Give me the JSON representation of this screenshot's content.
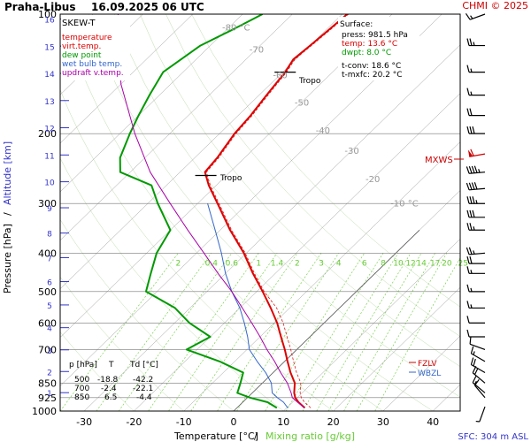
{
  "header": {
    "station": "Praha-Libus",
    "datetime": "16.09.2025 06 UTC",
    "credit": "CHMI © 2025"
  },
  "legend": {
    "chart_type_label": "SKEW-T",
    "items": [
      {
        "label": "temperature",
        "color": "#dd0000"
      },
      {
        "label": "virt.temp.",
        "color": "#dd0000"
      },
      {
        "label": "dew point",
        "color": "#009900"
      },
      {
        "label": "wet bulb temp.",
        "color": "#3366cc"
      },
      {
        "label": "updraft v.temp.",
        "color": "#aa00aa"
      }
    ]
  },
  "surface_box": {
    "title": "Surface:",
    "press": "press: 981.5 hPa",
    "temp": "temp: 13.6 °C",
    "dwpt": "dwpt: 8.0 °C",
    "tconv": "t-conv: 18.6 °C",
    "tmxfc": "t-mxfc: 20.2 °C"
  },
  "level_table": {
    "headers": [
      "p [hPa]",
      "T",
      "Td [°C]"
    ],
    "rows": [
      [
        "500",
        "-18.8",
        "-42.2"
      ],
      [
        "700",
        "-2.4",
        "-22.1"
      ],
      [
        "850",
        "6.5",
        "-4.4"
      ]
    ]
  },
  "axis_labels": {
    "x_temperature": "Temperature [°C]",
    "x_slash": "/",
    "x_mixing": "Mixing ratio [g/kg]",
    "y_pressure": "Pressure [hPa]",
    "y_slash": "/",
    "y_altitude": "Altitude [km]",
    "sfc": "SFC: 304 m ASL"
  },
  "annotations": {
    "tropo_upper": "Tropo",
    "tropo_lower": "Tropo",
    "mxws": "MXWS",
    "fzlv": "FZLV",
    "wbzl": "WBZL"
  },
  "colors": {
    "temperature": "#dd0000",
    "dewpoint": "#009900",
    "wetbulb": "#3366cc",
    "parcel": "#aa00aa",
    "mixing": "#66cc33",
    "isotherm": "#999999",
    "isobar": "#777777",
    "altitude": "#3333cc",
    "accent": "#cc0000"
  },
  "chart_data": {
    "type": "line",
    "title": "Praha-Libus 16.09.2025 06 UTC",
    "xlabel": "Temperature [°C] / Mixing ratio [g/kg]",
    "ylabel": "Pressure [hPa] / Altitude [km]",
    "xlim": [
      -35,
      45
    ],
    "ylim": [
      1000,
      100
    ],
    "y_scale": "log",
    "x_ticks": [
      -30,
      -20,
      -10,
      0,
      10,
      20,
      30,
      40
    ],
    "pressure_ticks": [
      100,
      200,
      300,
      400,
      500,
      600,
      700,
      850,
      925,
      1000
    ],
    "altitude_ticks_km": [
      1,
      2,
      3,
      4,
      5,
      6,
      7,
      8,
      9,
      10,
      11,
      12,
      13,
      14,
      15,
      16
    ],
    "isotherm_labels": [
      {
        "label": "-80 °C",
        "value": -80
      },
      {
        "label": "-70",
        "value": -70
      },
      {
        "label": "-60",
        "value": -60
      },
      {
        "label": "-50",
        "value": -50
      },
      {
        "label": "-40",
        "value": -40
      },
      {
        "label": "-30",
        "value": -30
      },
      {
        "label": "-20",
        "value": -20
      },
      {
        "label": "-10 °C",
        "value": -10
      }
    ],
    "mixing_ratio_labels": [
      "2",
      "0.4",
      "0.6",
      "1",
      "1.4",
      "2",
      "3",
      "4",
      "6",
      "8",
      "10",
      "12",
      "14",
      "17",
      "20",
      "25"
    ],
    "series": [
      {
        "name": "temperature",
        "points": [
          [
            981.5,
            13.6
          ],
          [
            950,
            11.2
          ],
          [
            925,
            9.6
          ],
          [
            900,
            8.4
          ],
          [
            850,
            6.5
          ],
          [
            800,
            3.5
          ],
          [
            750,
            0.6
          ],
          [
            700,
            -2.4
          ],
          [
            650,
            -5.8
          ],
          [
            600,
            -9.4
          ],
          [
            550,
            -13.8
          ],
          [
            500,
            -18.8
          ],
          [
            450,
            -24.5
          ],
          [
            400,
            -30.5
          ],
          [
            350,
            -38.0
          ],
          [
            300,
            -46.0
          ],
          [
            270,
            -51.5
          ],
          [
            250,
            -55.0
          ],
          [
            230,
            -55.5
          ],
          [
            200,
            -57.0
          ],
          [
            180,
            -57.5
          ],
          [
            160,
            -58.5
          ],
          [
            150,
            -59.0
          ],
          [
            140,
            -59.5
          ],
          [
            130,
            -60.5
          ],
          [
            120,
            -60.0
          ],
          [
            110,
            -59.5
          ],
          [
            100,
            -59.0
          ]
        ]
      },
      {
        "name": "dew point",
        "points": [
          [
            981.5,
            8.0
          ],
          [
            950,
            5.0
          ],
          [
            925,
            0.5
          ],
          [
            900,
            -3.0
          ],
          [
            850,
            -4.4
          ],
          [
            800,
            -6.0
          ],
          [
            750,
            -13.0
          ],
          [
            700,
            -22.1
          ],
          [
            650,
            -20.0
          ],
          [
            600,
            -27.0
          ],
          [
            550,
            -33.0
          ],
          [
            500,
            -42.2
          ],
          [
            450,
            -45.0
          ],
          [
            400,
            -48.0
          ],
          [
            350,
            -50.0
          ],
          [
            300,
            -58.0
          ],
          [
            270,
            -63.0
          ],
          [
            250,
            -72.0
          ],
          [
            230,
            -75.0
          ],
          [
            200,
            -78.0
          ],
          [
            180,
            -80.0
          ],
          [
            160,
            -82.0
          ],
          [
            140,
            -84.0
          ],
          [
            120,
            -82.0
          ],
          [
            110,
            -79.0
          ],
          [
            100,
            -76.0
          ]
        ]
      },
      {
        "name": "wet bulb temp.",
        "points": [
          [
            981.5,
            10.2
          ],
          [
            950,
            8.2
          ],
          [
            925,
            6.0
          ],
          [
            900,
            4.0
          ],
          [
            850,
            1.8
          ],
          [
            800,
            -1.5
          ],
          [
            750,
            -5.5
          ],
          [
            700,
            -9.5
          ],
          [
            650,
            -12.5
          ],
          [
            600,
            -16.0
          ],
          [
            550,
            -20.0
          ],
          [
            500,
            -25.0
          ],
          [
            450,
            -30.0
          ],
          [
            400,
            -35.0
          ],
          [
            350,
            -41.0
          ],
          [
            300,
            -48.0
          ]
        ]
      },
      {
        "name": "updraft v.temp.",
        "points": [
          [
            981.5,
            13.6
          ],
          [
            950,
            11.0
          ],
          [
            925,
            9.0
          ],
          [
            900,
            7.8
          ],
          [
            850,
            5.0
          ],
          [
            800,
            1.5
          ],
          [
            750,
            -2.0
          ],
          [
            700,
            -6.0
          ],
          [
            650,
            -10.0
          ],
          [
            600,
            -14.5
          ],
          [
            550,
            -19.5
          ],
          [
            500,
            -25.0
          ],
          [
            450,
            -31.5
          ],
          [
            400,
            -38.5
          ],
          [
            350,
            -46.5
          ],
          [
            300,
            -55.5
          ],
          [
            250,
            -66.0
          ],
          [
            200,
            -77.0
          ],
          [
            150,
            -90.0
          ],
          [
            100,
            -105.0
          ]
        ]
      }
    ],
    "tropopause_pressures_hpa": [
      140,
      255
    ],
    "max_wind_pressure_hpa": 225,
    "freezing_level_hpa": 740,
    "wet_bulb_zero_hpa": 780,
    "wind_barbs": [
      {
        "p": 100,
        "dir": 250,
        "spd": 15
      },
      {
        "p": 120,
        "dir": 270,
        "spd": 25
      },
      {
        "p": 140,
        "dir": 270,
        "spd": 15
      },
      {
        "p": 160,
        "dir": 270,
        "spd": 15
      },
      {
        "p": 180,
        "dir": 270,
        "spd": 20
      },
      {
        "p": 200,
        "dir": 270,
        "spd": 30
      },
      {
        "p": 225,
        "dir": 260,
        "spd": 60
      },
      {
        "p": 250,
        "dir": 265,
        "spd": 45
      },
      {
        "p": 275,
        "dir": 265,
        "spd": 40
      },
      {
        "p": 300,
        "dir": 270,
        "spd": 35
      },
      {
        "p": 325,
        "dir": 270,
        "spd": 30
      },
      {
        "p": 350,
        "dir": 270,
        "spd": 25
      },
      {
        "p": 400,
        "dir": 265,
        "spd": 25
      },
      {
        "p": 425,
        "dir": 270,
        "spd": 20
      },
      {
        "p": 450,
        "dir": 270,
        "spd": 15
      },
      {
        "p": 500,
        "dir": 270,
        "spd": 15
      },
      {
        "p": 550,
        "dir": 270,
        "spd": 15
      },
      {
        "p": 600,
        "dir": 270,
        "spd": 10
      },
      {
        "p": 650,
        "dir": 270,
        "spd": 10
      },
      {
        "p": 700,
        "dir": 290,
        "spd": 10
      },
      {
        "p": 750,
        "dir": 300,
        "spd": 15
      },
      {
        "p": 800,
        "dir": 300,
        "spd": 20
      },
      {
        "p": 850,
        "dir": 310,
        "spd": 20
      },
      {
        "p": 900,
        "dir": 310,
        "spd": 15
      },
      {
        "p": 925,
        "dir": 320,
        "spd": 10
      },
      {
        "p": 975,
        "dir": 200,
        "spd": 5
      }
    ]
  }
}
